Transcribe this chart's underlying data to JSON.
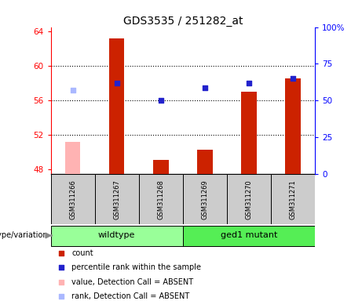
{
  "title": "GDS3535 / 251282_at",
  "samples": [
    "GSM311266",
    "GSM311267",
    "GSM311268",
    "GSM311269",
    "GSM311270",
    "GSM311271"
  ],
  "bar_values": [
    51.2,
    63.2,
    49.1,
    50.3,
    57.0,
    58.6
  ],
  "bar_colors": [
    "#ffb3b3",
    "#cc2200",
    "#cc2200",
    "#cc2200",
    "#cc2200",
    "#cc2200"
  ],
  "dot_values": [
    57.2,
    58.0,
    56.0,
    57.5,
    58.0,
    58.6
  ],
  "dot_colors": [
    "#aab8ff",
    "#2222cc",
    "#2222cc",
    "#2222cc",
    "#2222cc",
    "#2222cc"
  ],
  "ylim_left": [
    47.5,
    64.5
  ],
  "ylim_right": [
    0,
    100
  ],
  "yticks_left": [
    48,
    52,
    56,
    60,
    64
  ],
  "yticks_right": [
    0,
    25,
    50,
    75,
    100
  ],
  "ytick_labels_right": [
    "0",
    "25",
    "50",
    "75",
    "100%"
  ],
  "grid_values": [
    52,
    56,
    60
  ],
  "group_colors": {
    "wildtype": "#99ff99",
    "ged1 mutant": "#55ee55"
  },
  "group_label": "genotype/variation",
  "legend_items": [
    {
      "label": "count",
      "color": "#cc2200"
    },
    {
      "label": "percentile rank within the sample",
      "color": "#2222cc"
    },
    {
      "label": "value, Detection Call = ABSENT",
      "color": "#ffb3b3"
    },
    {
      "label": "rank, Detection Call = ABSENT",
      "color": "#aab8ff"
    }
  ],
  "bar_base": 47.5,
  "bar_width": 0.35,
  "sample_box_color": "#cccccc",
  "wildtype_range": [
    1,
    3
  ],
  "mutant_range": [
    4,
    6
  ]
}
